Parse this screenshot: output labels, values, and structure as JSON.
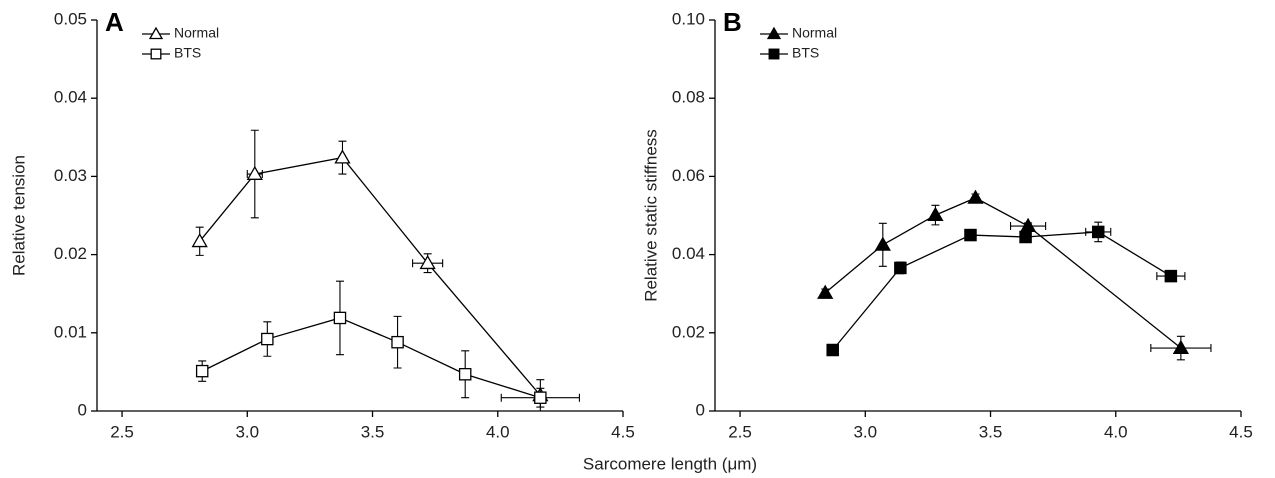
{
  "chart_data": [
    {
      "type": "line",
      "title": "A",
      "y_label": "Relative tension",
      "x_label": "Sarcomere length (μm)",
      "xlim": [
        2.4,
        4.5
      ],
      "ylim": [
        0,
        0.05
      ],
      "xticks": [
        2.5,
        {
          "value": 3,
          "label": "3.0"
        },
        3.5,
        {
          "value": 4,
          "label": "4.0"
        },
        4.5
      ],
      "yticks": [
        0,
        0.01,
        0.02,
        0.03,
        0.04,
        0.05
      ],
      "legend": "upper left",
      "series": [
        {
          "name": "Normal",
          "color": "#000000",
          "marker": "triangle",
          "filled": false,
          "x": [
            2.81,
            3.03,
            3.38,
            3.72,
            4.17
          ],
          "values": [
            0.0217,
            0.0303,
            0.0324,
            0.0189,
            0.002
          ],
          "errors": [
            0.0018,
            0.0056,
            0.0021,
            0.0012,
            0.002
          ],
          "x_errors": [
            null,
            0.03,
            null,
            0.06,
            null
          ]
        },
        {
          "name": "BTS",
          "color": "#000000",
          "marker": "square",
          "filled": false,
          "x": [
            2.82,
            3.08,
            3.37,
            3.6,
            3.87,
            4.17
          ],
          "values": [
            0.0051,
            0.0092,
            0.0119,
            0.0088,
            0.0047,
            0.0017
          ],
          "errors": [
            0.0013,
            0.0022,
            0.0047,
            0.0033,
            0.003,
            0.0012
          ],
          "x_errors": [
            null,
            null,
            null,
            null,
            null,
            0.156
          ]
        }
      ]
    },
    {
      "type": "line",
      "title": "B",
      "y_label": "Relative static stiffness",
      "xlim": [
        2.4,
        4.5
      ],
      "ylim": [
        0,
        0.1
      ],
      "xticks": [
        2.5,
        {
          "value": 3,
          "label": "3.0"
        },
        3.5,
        {
          "value": 4,
          "label": "4.0"
        },
        4.5
      ],
      "yticks": [
        0,
        0.02,
        0.04,
        0.06,
        0.08,
        {
          "value": 0.1,
          "label": "0.10"
        }
      ],
      "legend": "upper left",
      "series": [
        {
          "name": "Normal",
          "color": "#000000",
          "marker": "triangle",
          "filled": true,
          "x": [
            2.84,
            3.07,
            3.28,
            3.44,
            3.65,
            4.26
          ],
          "values": [
            0.0302,
            0.0425,
            0.0501,
            0.0545,
            0.0473,
            0.0161
          ],
          "errors": [
            0.001,
            0.0055,
            0.0025,
            0.001,
            0.0008,
            0.003
          ],
          "x_errors": [
            null,
            null,
            null,
            null,
            0.07,
            0.12
          ]
        },
        {
          "name": "BTS",
          "color": "#000000",
          "marker": "square",
          "filled": true,
          "x": [
            2.87,
            3.14,
            3.42,
            3.64,
            3.93,
            4.22
          ],
          "values": [
            0.0156,
            0.0366,
            0.045,
            0.0445,
            0.0458,
            0.0345
          ],
          "errors": [
            0.001,
            0.0015,
            0.001,
            0.0012,
            0.0025,
            0.001
          ],
          "x_errors": [
            null,
            null,
            null,
            null,
            0.05,
            0.056
          ]
        }
      ]
    }
  ]
}
